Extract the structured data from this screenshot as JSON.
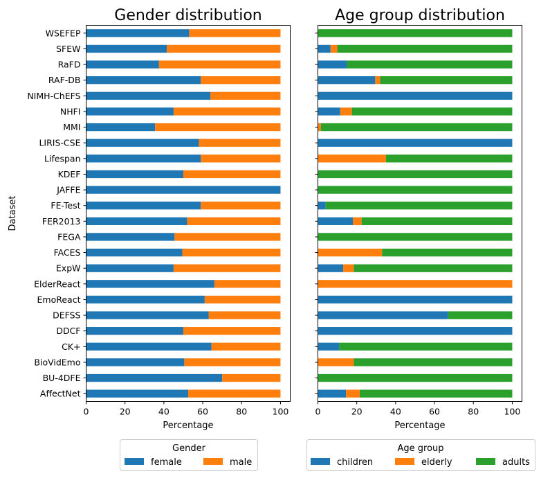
{
  "chart_data": [
    {
      "type": "bar",
      "orientation": "horizontal",
      "stacked": true,
      "title": "Gender distribution",
      "xlabel": "Percentage",
      "ylabel": "Dataset",
      "xlim": [
        0,
        105
      ],
      "xticks": [
        0,
        20,
        40,
        60,
        80,
        100
      ],
      "categories": [
        "AffectNet",
        "BU-4DFE",
        "BioVidEmo",
        "CK+",
        "DDCF",
        "DEFSS",
        "EmoReact",
        "ElderReact",
        "ExpW",
        "FACES",
        "FEGA",
        "FER2013",
        "FE-Test",
        "JAFFE",
        "KDEF",
        "Lifespan",
        "LIRIS-CSE",
        "MMI",
        "NHFI",
        "NIMH-ChEFS",
        "RAF-DB",
        "RaFD",
        "SFEW",
        "WSEFEP"
      ],
      "series": [
        {
          "name": "female",
          "color": "#1f77b4",
          "values": [
            52.5,
            70,
            50.5,
            64.5,
            50,
            63,
            61,
            66,
            45,
            49.5,
            45.5,
            52,
            59,
            100,
            50,
            59,
            58,
            35.5,
            45,
            64,
            59,
            37.5,
            41.5,
            53
          ]
        },
        {
          "name": "male",
          "color": "#ff7f0e",
          "values": [
            47.5,
            30,
            49.5,
            35.5,
            50,
            37,
            39,
            34,
            55,
            50.5,
            54.5,
            48,
            41,
            0,
            50,
            41,
            42,
            64.5,
            55,
            36,
            41,
            62.5,
            58.5,
            47
          ]
        }
      ],
      "legend": {
        "title": "Gender",
        "placement": "bottom-center"
      }
    },
    {
      "type": "bar",
      "orientation": "horizontal",
      "stacked": true,
      "title": "Age group distribution",
      "xlabel": "Percentage",
      "ylabel": "",
      "xlim": [
        0,
        105
      ],
      "xticks": [
        0,
        20,
        40,
        60,
        80,
        100
      ],
      "categories": [
        "AffectNet",
        "BU-4DFE",
        "BioVidEmo",
        "CK+",
        "DDCF",
        "DEFSS",
        "EmoReact",
        "ElderReact",
        "ExpW",
        "FACES",
        "FEGA",
        "FER2013",
        "FE-Test",
        "JAFFE",
        "KDEF",
        "Lifespan",
        "LIRIS-CSE",
        "MMI",
        "NHFI",
        "NIMH-ChEFS",
        "RAF-DB",
        "RaFD",
        "SFEW",
        "WSEFEP"
      ],
      "series": [
        {
          "name": "children",
          "color": "#1f77b4",
          "values": [
            14.5,
            0,
            0,
            11,
            100,
            67,
            100,
            0,
            13,
            0,
            0,
            18,
            4,
            0,
            0,
            0,
            100,
            0,
            11.5,
            100,
            29.5,
            15,
            6.5,
            0
          ]
        },
        {
          "name": "elderly",
          "color": "#ff7f0e",
          "values": [
            7,
            0,
            18.5,
            0,
            0,
            0,
            0,
            100,
            5.5,
            33,
            0,
            4.5,
            0,
            0,
            0,
            35,
            0,
            1.5,
            6,
            0,
            2.5,
            0,
            3.5,
            0
          ]
        },
        {
          "name": "adults",
          "color": "#2ca02c",
          "values": [
            78.5,
            100,
            81.5,
            89,
            0,
            33,
            0,
            0,
            81.5,
            67,
            100,
            77.5,
            96,
            100,
            100,
            65,
            0,
            98.5,
            82.5,
            0,
            68,
            85,
            90,
            100
          ]
        }
      ],
      "legend": {
        "title": "Age group",
        "placement": "bottom-center"
      }
    }
  ]
}
